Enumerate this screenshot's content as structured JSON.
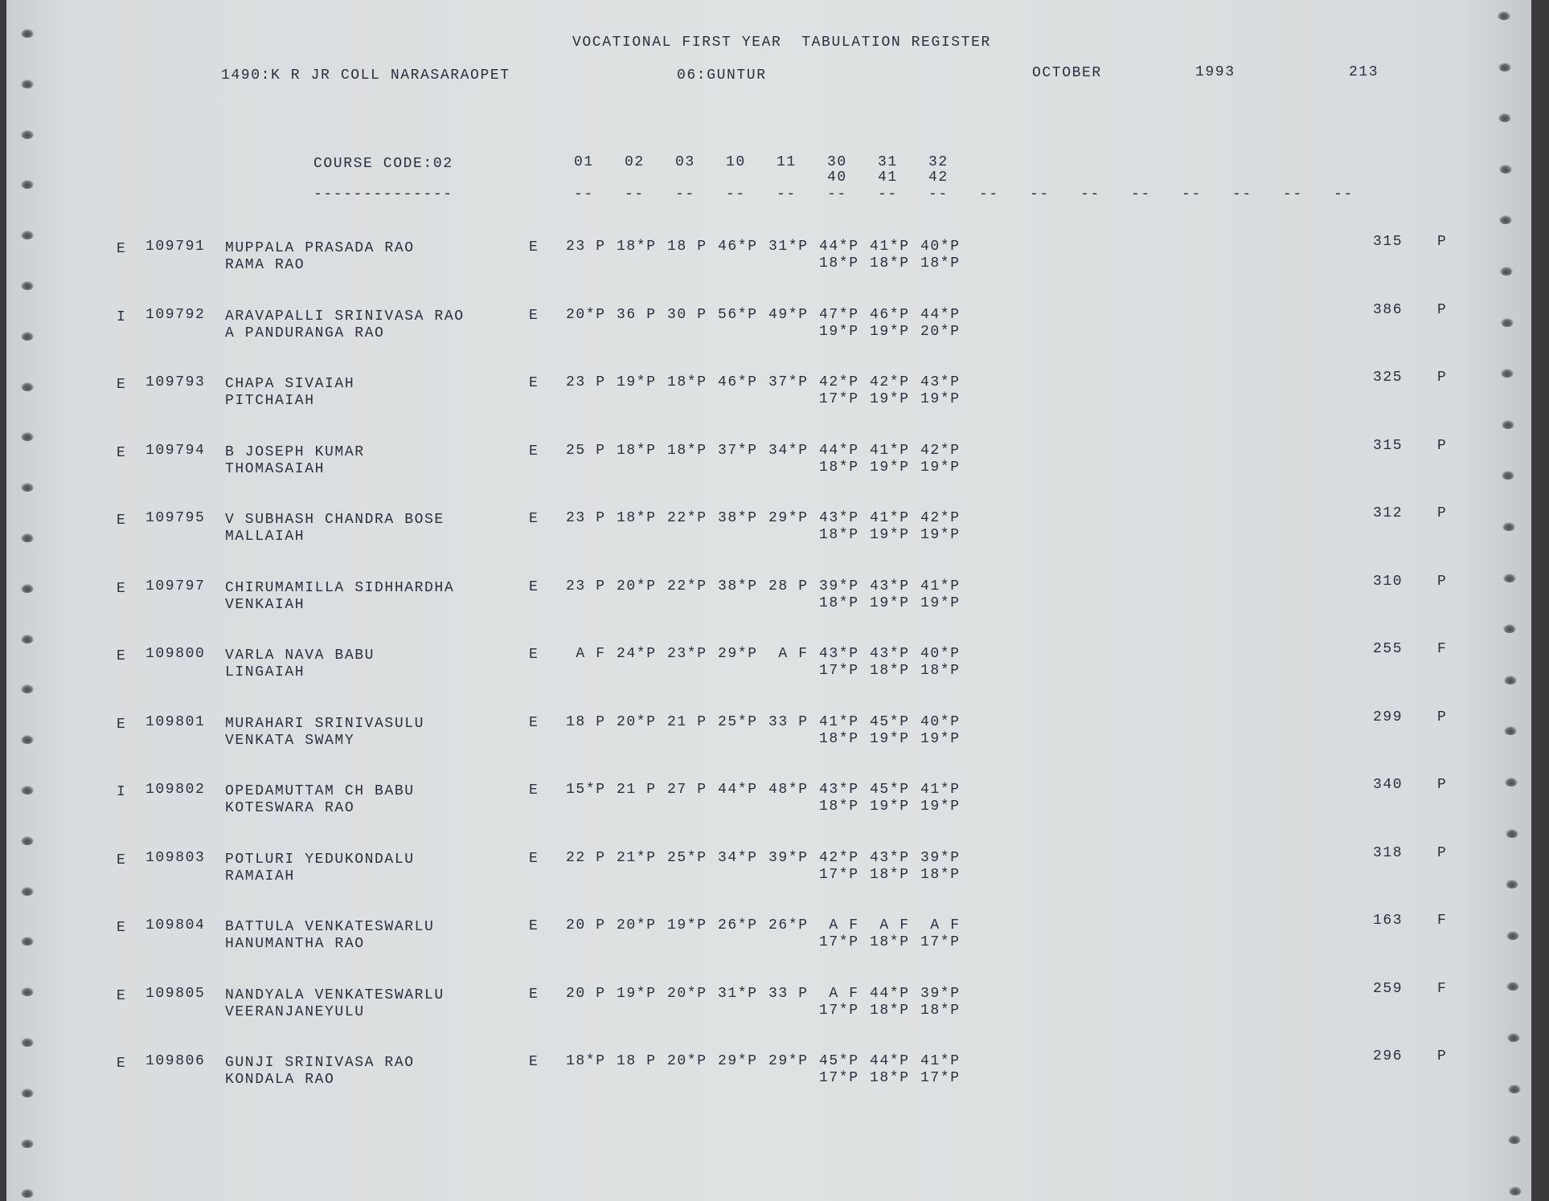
{
  "header": {
    "title": "VOCATIONAL FIRST YEAR  TABULATION REGISTER",
    "college": "1490:K R JR COLL NARASARAOPET",
    "district": "06:GUNTUR",
    "month": "OCTOBER",
    "year": "1993",
    "page": "213"
  },
  "columns": {
    "course_code": "COURSE CODE:02",
    "course_underline": "--------------",
    "subjects_line1": [
      "01",
      "02",
      "03",
      "10",
      "11",
      "30",
      "31",
      "32"
    ],
    "subjects_line2": [
      "40",
      "41",
      "42"
    ],
    "dash_count": 16,
    "dash": "--"
  },
  "rows": [
    {
      "type": "E",
      "roll": "109791",
      "name": "MUPPALA PRASADA RAO",
      "father": "RAMA RAO",
      "medium": "E",
      "marks1": [
        "23 P",
        "18*P",
        "18 P",
        "46*P",
        "31*P",
        "44*P",
        "41*P",
        "40*P"
      ],
      "marks2": [
        "18*P",
        "18*P",
        "18*P"
      ],
      "total": "315",
      "result": "P"
    },
    {
      "type": "I",
      "roll": "109792",
      "name": "ARAVAPALLI SRINIVASA RAO",
      "father": "A PANDURANGA RAO",
      "medium": "E",
      "marks1": [
        "20*P",
        "36 P",
        "30 P",
        "56*P",
        "49*P",
        "47*P",
        "46*P",
        "44*P"
      ],
      "marks2": [
        "19*P",
        "19*P",
        "20*P"
      ],
      "total": "386",
      "result": "P"
    },
    {
      "type": "E",
      "roll": "109793",
      "name": "CHAPA SIVAIAH",
      "father": "PITCHAIAH",
      "medium": "E",
      "marks1": [
        "23 P",
        "19*P",
        "18*P",
        "46*P",
        "37*P",
        "42*P",
        "42*P",
        "43*P"
      ],
      "marks2": [
        "17*P",
        "19*P",
        "19*P"
      ],
      "total": "325",
      "result": "P"
    },
    {
      "type": "E",
      "roll": "109794",
      "name": "B JOSEPH KUMAR",
      "father": "THOMASAIAH",
      "medium": "E",
      "marks1": [
        "25 P",
        "18*P",
        "18*P",
        "37*P",
        "34*P",
        "44*P",
        "41*P",
        "42*P"
      ],
      "marks2": [
        "18*P",
        "19*P",
        "19*P"
      ],
      "total": "315",
      "result": "P"
    },
    {
      "type": "E",
      "roll": "109795",
      "name": "V SUBHASH CHANDRA BOSE",
      "father": "MALLAIAH",
      "medium": "E",
      "marks1": [
        "23 P",
        "18*P",
        "22*P",
        "38*P",
        "29*P",
        "43*P",
        "41*P",
        "42*P"
      ],
      "marks2": [
        "18*P",
        "19*P",
        "19*P"
      ],
      "total": "312",
      "result": "P"
    },
    {
      "type": "E",
      "roll": "109797",
      "name": "CHIRUMAMILLA SIDHHARDHA",
      "father": "VENKAIAH",
      "medium": "E",
      "marks1": [
        "23 P",
        "20*P",
        "22*P",
        "38*P",
        "28 P",
        "39*P",
        "43*P",
        "41*P"
      ],
      "marks2": [
        "18*P",
        "19*P",
        "19*P"
      ],
      "total": "310",
      "result": "P"
    },
    {
      "type": "E",
      "roll": "109800",
      "name": "VARLA NAVA BABU",
      "father": "LINGAIAH",
      "medium": "E",
      "marks1": [
        " A F",
        "24*P",
        "23*P",
        "29*P",
        " A F",
        "43*P",
        "43*P",
        "40*P"
      ],
      "marks2": [
        "17*P",
        "18*P",
        "18*P"
      ],
      "total": "255",
      "result": "F"
    },
    {
      "type": "E",
      "roll": "109801",
      "name": "MURAHARI SRINIVASULU",
      "father": "VENKATA SWAMY",
      "medium": "E",
      "marks1": [
        "18 P",
        "20*P",
        "21 P",
        "25*P",
        "33 P",
        "41*P",
        "45*P",
        "40*P"
      ],
      "marks2": [
        "18*P",
        "19*P",
        "19*P"
      ],
      "total": "299",
      "result": "P"
    },
    {
      "type": "I",
      "roll": "109802",
      "name": "OPEDAMUTTAM CH BABU",
      "father": "KOTESWARA RAO",
      "medium": "E",
      "marks1": [
        "15*P",
        "21 P",
        "27 P",
        "44*P",
        "48*P",
        "43*P",
        "45*P",
        "41*P"
      ],
      "marks2": [
        "18*P",
        "19*P",
        "19*P"
      ],
      "total": "340",
      "result": "P"
    },
    {
      "type": "E",
      "roll": "109803",
      "name": "POTLURI YEDUKONDALU",
      "father": "RAMAIAH",
      "medium": "E",
      "marks1": [
        "22 P",
        "21*P",
        "25*P",
        "34*P",
        "39*P",
        "42*P",
        "43*P",
        "39*P"
      ],
      "marks2": [
        "17*P",
        "18*P",
        "18*P"
      ],
      "total": "318",
      "result": "P"
    },
    {
      "type": "E",
      "roll": "109804",
      "name": "BATTULA VENKATESWARLU",
      "father": "HANUMANTHA RAO",
      "medium": "E",
      "marks1": [
        "20 P",
        "20*P",
        "19*P",
        "26*P",
        "26*P",
        " A F",
        " A F",
        " A F"
      ],
      "marks2": [
        "17*P",
        "18*P",
        "17*P"
      ],
      "total": "163",
      "result": "F"
    },
    {
      "type": "E",
      "roll": "109805",
      "name": "NANDYALA VENKATESWARLU",
      "father": "VEERANJANEYULU",
      "medium": "E",
      "marks1": [
        "20 P",
        "19*P",
        "20*P",
        "31*P",
        "33 P",
        " A F",
        "44*P",
        "39*P"
      ],
      "marks2": [
        "17*P",
        "18*P",
        "18*P"
      ],
      "total": "259",
      "result": "F"
    },
    {
      "type": "E",
      "roll": "109806",
      "name": "GUNJI SRINIVASA RAO",
      "father": "KONDALA RAO",
      "medium": "E",
      "marks1": [
        "18*P",
        "18 P",
        "20*P",
        "29*P",
        "29*P",
        "45*P",
        "44*P",
        "41*P"
      ],
      "marks2": [
        "17*P",
        "18*P",
        "17*P"
      ],
      "total": "296",
      "result": "P"
    }
  ],
  "colors": {
    "paper": "#dfe2e3",
    "ink": "#2b2e3b",
    "background": "#3a3a3c"
  }
}
